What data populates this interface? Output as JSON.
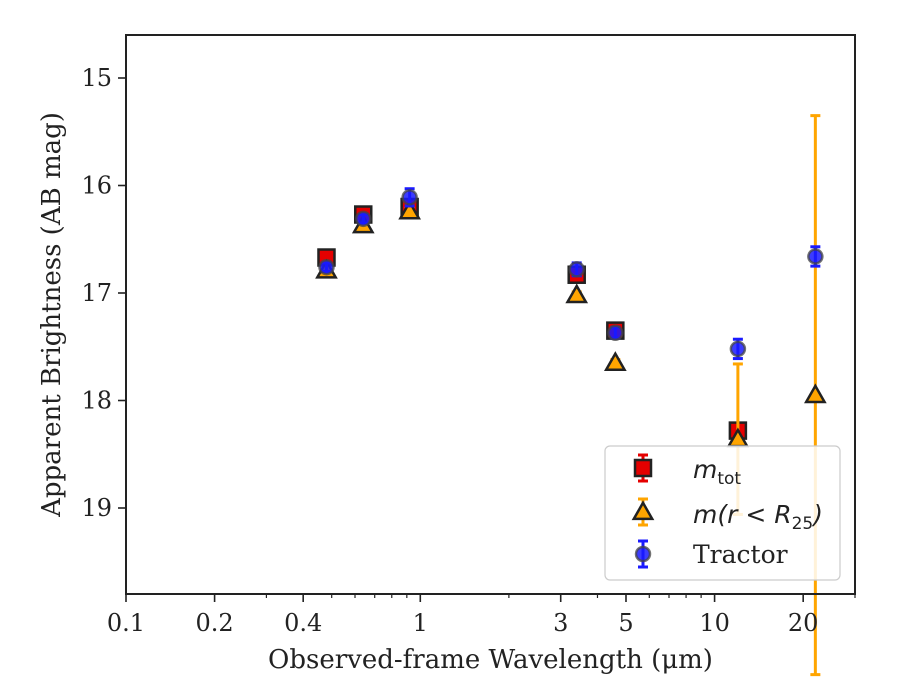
{
  "chart_data": {
    "type": "scatter",
    "title": "",
    "xlabel": "Observed-frame Wavelength (μm)",
    "ylabel": "Apparent Brightness (AB mag)",
    "xscale": "log",
    "yscale": "linear",
    "y_inverted": true,
    "xlim": [
      0.1,
      30
    ],
    "ylim": [
      19.8,
      14.6
    ],
    "xticks": [
      0.1,
      0.2,
      0.4,
      1,
      3,
      5,
      10,
      20
    ],
    "xtick_labels": [
      "0.1",
      "0.2",
      "0.4",
      "1",
      "3",
      "5",
      "10",
      "20"
    ],
    "yticks": [
      15,
      16,
      17,
      18,
      19
    ],
    "ytick_labels": [
      "15",
      "16",
      "17",
      "18",
      "19"
    ],
    "grid": false,
    "legend_position": "bottom-right",
    "series": [
      {
        "name_text": "m",
        "name_sub": "tot",
        "marker": "square",
        "color": "#e50000",
        "edgecolor": "#222222",
        "errcolor": "#e50000",
        "x": [
          0.48,
          0.64,
          0.92,
          3.4,
          4.6,
          12
        ],
        "y": [
          16.67,
          16.27,
          16.2,
          16.83,
          17.35,
          18.28
        ],
        "yerr": [
          0.05,
          0.05,
          0.05,
          0.05,
          0.05,
          0.07
        ]
      },
      {
        "name_text": "m(r < R",
        "name_sub": "25",
        "name_suffix": ")",
        "marker": "triangle",
        "color": "#ffa500",
        "edgecolor": "#222222",
        "errcolor": "#ffa500",
        "x": [
          0.48,
          0.64,
          0.92,
          3.4,
          4.6,
          12,
          22
        ],
        "y": [
          16.79,
          16.37,
          16.24,
          17.02,
          17.65,
          18.36,
          17.95
        ],
        "yerr": [
          0.03,
          0.03,
          0.03,
          0.03,
          0.03,
          0.7,
          2.6
        ]
      },
      {
        "name": "Tractor",
        "marker": "circle",
        "color": "#1a1aff",
        "edgecolor": "#444444",
        "errcolor": "#1a1aff",
        "x": [
          0.48,
          0.64,
          0.92,
          3.4,
          4.6,
          12,
          22
        ],
        "y": [
          16.76,
          16.31,
          16.11,
          16.78,
          17.37,
          17.52,
          16.66
        ],
        "yerr": [
          0.04,
          0.04,
          0.08,
          0.06,
          0.05,
          0.09,
          0.09
        ]
      }
    ]
  }
}
